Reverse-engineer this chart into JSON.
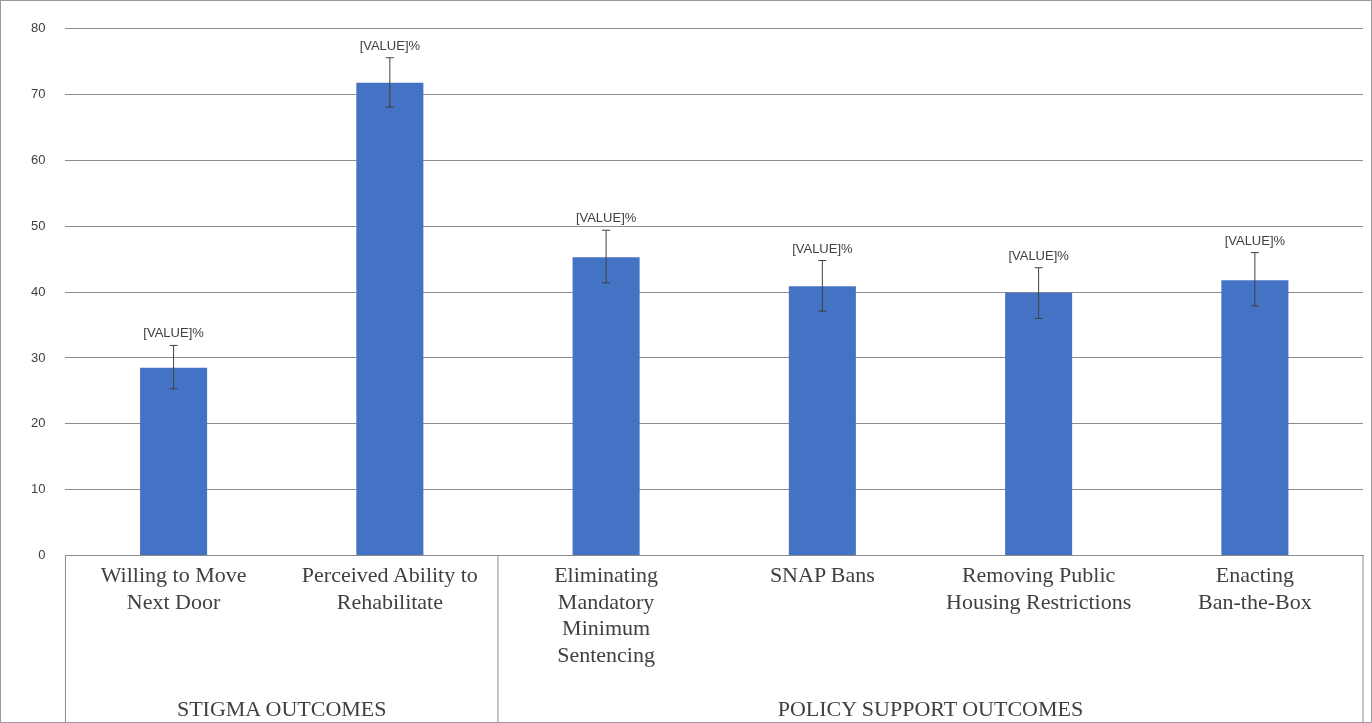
{
  "chart_data": {
    "type": "bar",
    "categories": [
      "Willing to Move Next Door",
      "Perceived Ability to Rehabilitate",
      "Eliminating Mandatory Minimum Sentencing",
      "SNAP Bans",
      "Removing Public Housing Restrictions",
      "Enacting Ban-the-Box"
    ],
    "values": [
      28.5,
      71.8,
      45.3,
      40.9,
      39.9,
      41.8
    ],
    "errors": [
      [
        25.3,
        31.9
      ],
      [
        68.1,
        75.6
      ],
      [
        41.4,
        49.4
      ],
      [
        37.1,
        44.8
      ],
      [
        36.0,
        43.7
      ],
      [
        37.9,
        46.0
      ]
    ],
    "value_labels": [
      "[VALUE]%",
      "[VALUE]%",
      "[VALUE]%",
      "[VALUE]%",
      "[VALUE]%",
      "[VALUE]%"
    ],
    "color": "#4472c4",
    "ylim": [
      0,
      80
    ],
    "yticks": [
      0,
      10,
      20,
      30,
      40,
      50,
      60,
      70,
      80
    ],
    "grid": "y",
    "annotations": [
      "STIGMA OUTCOMES",
      "POLICY SUPPORT OUTCOMES"
    ]
  }
}
